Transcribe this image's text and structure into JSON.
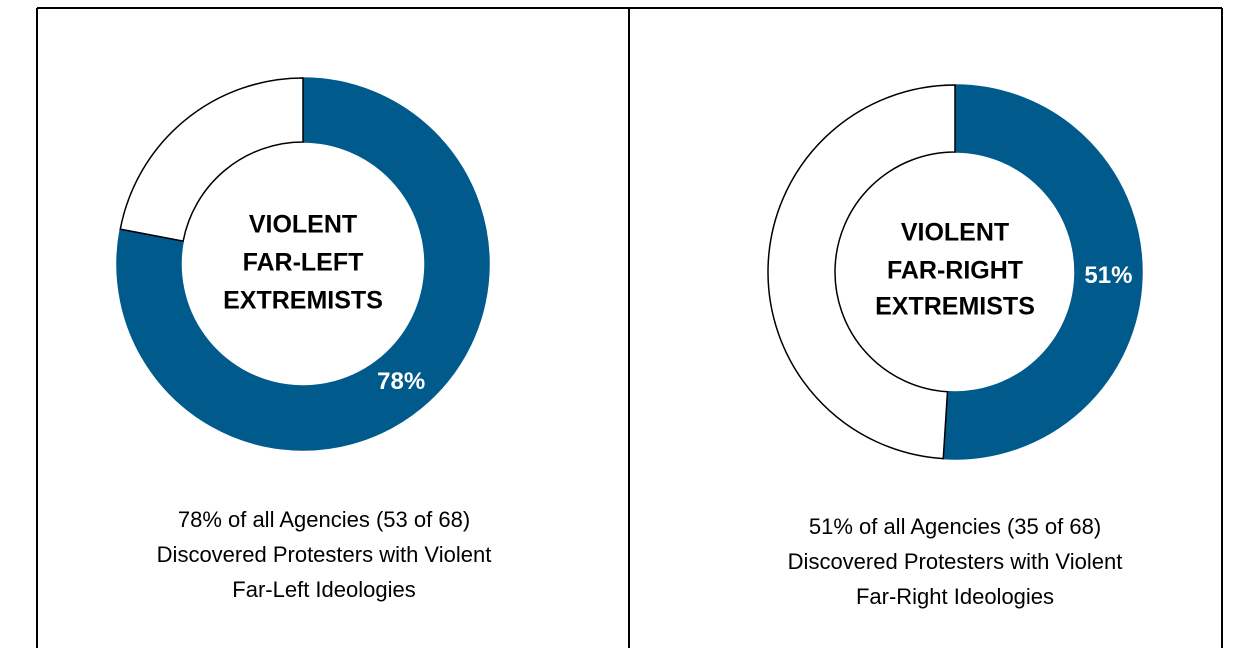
{
  "chart_data": [
    {
      "type": "donut",
      "center_label": [
        "VIOLENT",
        "FAR-LEFT",
        "EXTREMISTS"
      ],
      "values": [
        78,
        22
      ],
      "value_labels": [
        "78%",
        null
      ],
      "colors": [
        "#005a8c",
        "#ffffff"
      ],
      "caption": [
        "78% of all Agencies (53 of 68)",
        "Discovered Protesters with Violent",
        "Far-Left Ideologies"
      ]
    },
    {
      "type": "donut",
      "center_label": [
        "VIOLENT",
        "FAR-RIGHT",
        "EXTREMISTS"
      ],
      "values": [
        51,
        49
      ],
      "value_labels": [
        "51%",
        null
      ],
      "colors": [
        "#005a8c",
        "#ffffff"
      ],
      "caption": [
        "51% of all Agencies (35 of 68)",
        "Discovered Protesters with Violent",
        "Far-Right Ideologies"
      ]
    }
  ]
}
